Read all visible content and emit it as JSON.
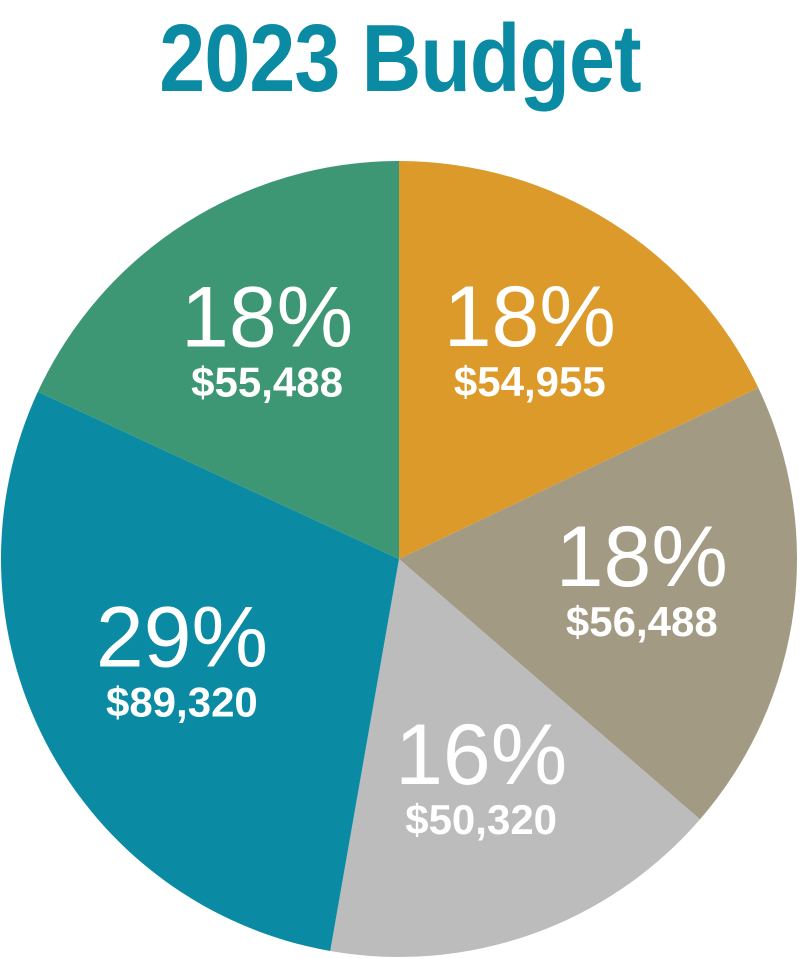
{
  "colors": {
    "title": "#0a8ba3",
    "label": "#ffffff"
  },
  "chart_data": {
    "type": "pie",
    "title": "2023 Budget",
    "slices": [
      {
        "percent_label": "18%",
        "amount_label": "$54,955",
        "value": 54955,
        "color": "#dc9a2a"
      },
      {
        "percent_label": "18%",
        "amount_label": "$56,488",
        "value": 56488,
        "color": "#a39a84"
      },
      {
        "percent_label": "16%",
        "amount_label": "$50,320",
        "value": 50320,
        "color": "#bcbcbc"
      },
      {
        "percent_label": "29%",
        "amount_label": "$89,320",
        "value": 89320,
        "color": "#0a8ba3"
      },
      {
        "percent_label": "18%",
        "amount_label": "$55,488",
        "value": 55488,
        "color": "#3d9774"
      }
    ]
  }
}
